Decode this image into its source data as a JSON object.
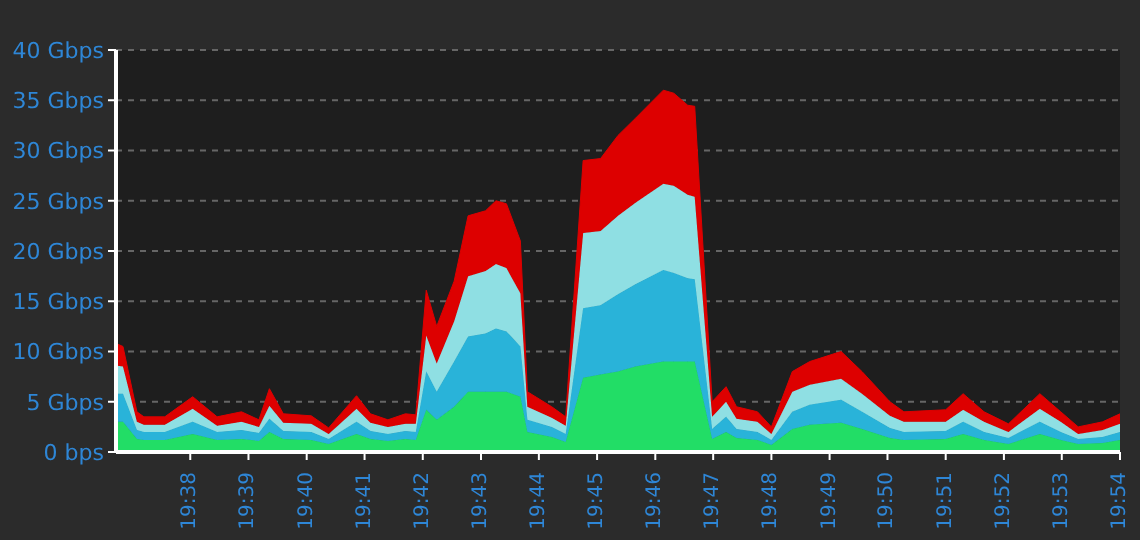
{
  "chart_data": {
    "type": "area",
    "stacked": true,
    "grid": "y",
    "x": [
      19.612,
      19.614,
      19.618,
      19.62,
      19.626,
      19.634,
      19.641,
      19.648,
      19.653,
      19.656,
      19.66,
      19.668,
      19.673,
      19.681,
      19.685,
      19.69,
      19.695,
      19.698,
      19.701,
      19.704,
      19.709,
      19.713,
      19.718,
      19.721,
      19.724,
      19.728,
      19.73,
      19.737,
      19.741,
      19.746,
      19.751,
      19.756,
      19.761,
      19.769,
      19.772,
      19.776,
      19.778,
      19.783,
      19.787,
      19.79,
      19.796,
      19.8,
      19.806,
      19.811,
      19.82,
      19.826,
      19.834,
      19.838,
      19.85,
      19.855,
      19.861,
      19.868,
      19.877,
      19.883,
      19.888,
      19.895,
      19.9
    ],
    "xlim": [
      19.612,
      19.9
    ],
    "xticks": [
      {
        "value": 19.6333,
        "label": "19:38"
      },
      {
        "value": 19.65,
        "label": "19:39"
      },
      {
        "value": 19.6667,
        "label": "19:40"
      },
      {
        "value": 19.6833,
        "label": "19:41"
      },
      {
        "value": 19.7,
        "label": "19:42"
      },
      {
        "value": 19.7167,
        "label": "19:43"
      },
      {
        "value": 19.7333,
        "label": "19:44"
      },
      {
        "value": 19.75,
        "label": "19:45"
      },
      {
        "value": 19.7667,
        "label": "19:46"
      },
      {
        "value": 19.7833,
        "label": "19:47"
      },
      {
        "value": 19.8,
        "label": "19:48"
      },
      {
        "value": 19.8167,
        "label": "19:49"
      },
      {
        "value": 19.8333,
        "label": "19:50"
      },
      {
        "value": 19.85,
        "label": "19:51"
      },
      {
        "value": 19.8667,
        "label": "19:52"
      },
      {
        "value": 19.8833,
        "label": "19:53"
      },
      {
        "value": 19.9,
        "label": "19:54"
      }
    ],
    "ylim": [
      0,
      40
    ],
    "yticks": [
      {
        "value": 0,
        "label": "0 bps"
      },
      {
        "value": 5,
        "label": "5 Gbps"
      },
      {
        "value": 10,
        "label": "10 Gbps"
      },
      {
        "value": 15,
        "label": "15 Gbps"
      },
      {
        "value": 20,
        "label": "20 Gbps"
      },
      {
        "value": 25,
        "label": "25 Gbps"
      },
      {
        "value": 30,
        "label": "30 Gbps"
      },
      {
        "value": 35,
        "label": "35 Gbps"
      },
      {
        "value": 40,
        "label": "40 Gbps"
      }
    ],
    "series": [
      {
        "color": "#22dd66",
        "values": [
          3,
          3,
          1.3,
          1.2,
          1.2,
          1.8,
          1.2,
          1.3,
          1.1,
          2,
          1.3,
          1.2,
          0.8,
          1.8,
          1.3,
          1.1,
          1.3,
          1.2,
          4.2,
          3.2,
          4.5,
          6,
          6,
          6,
          6,
          5.5,
          2,
          1.5,
          1,
          7.4,
          7.7,
          8,
          8.5,
          9,
          9,
          9,
          9,
          1.3,
          2,
          1.4,
          1.2,
          0.7,
          2.3,
          2.7,
          2.9,
          2.3,
          1.4,
          1.2,
          1.3,
          1.8,
          1.2,
          0.8,
          1.8,
          1.2,
          0.8,
          0.9,
          1.2
        ]
      },
      {
        "color": "#29b3d9",
        "values": [
          2.8,
          2.8,
          0.9,
          0.8,
          0.8,
          1.2,
          0.8,
          0.9,
          0.8,
          1.3,
          0.8,
          0.8,
          0.5,
          1.2,
          0.8,
          0.7,
          0.8,
          0.8,
          3.8,
          2.8,
          4.5,
          5.5,
          5.8,
          6.3,
          6,
          5,
          1.2,
          1,
          0.8,
          6.9,
          6.9,
          7.7,
          8.2,
          9.1,
          8.8,
          8.3,
          8.2,
          1,
          1.5,
          0.9,
          0.8,
          0.5,
          1.7,
          2,
          2.3,
          1.7,
          1,
          0.8,
          0.8,
          1.2,
          0.8,
          0.6,
          1.2,
          0.8,
          0.5,
          0.6,
          0.8
        ]
      },
      {
        "color": "#8fdfe3",
        "values": [
          2.8,
          2.7,
          0.8,
          0.7,
          0.7,
          1.3,
          0.6,
          0.8,
          0.6,
          1.3,
          0.8,
          0.8,
          0.5,
          1.3,
          0.8,
          0.7,
          0.7,
          0.8,
          3.6,
          2.8,
          4,
          6,
          6.2,
          6.4,
          6.3,
          5.3,
          1.3,
          0.9,
          0.8,
          7.5,
          7.4,
          7.8,
          8.1,
          8.6,
          8.7,
          8.3,
          8.2,
          1.2,
          1.5,
          1,
          1,
          0.6,
          2,
          2,
          2.1,
          1.8,
          1.2,
          1,
          0.9,
          1.2,
          1,
          0.6,
          1.3,
          1,
          0.5,
          0.7,
          0.8
        ]
      },
      {
        "color": "#dd0000",
        "values": [
          2.2,
          2,
          1,
          0.8,
          0.8,
          1.2,
          0.9,
          1,
          0.7,
          1.7,
          0.9,
          0.8,
          0.6,
          1.3,
          0.9,
          0.7,
          1,
          0.9,
          4.5,
          3.7,
          4,
          6,
          6,
          6.3,
          6.4,
          5.2,
          1.5,
          1.1,
          0.9,
          7.2,
          7.2,
          8,
          8.4,
          9.3,
          9.2,
          8.9,
          9,
          1.5,
          1.5,
          1.2,
          1,
          0.7,
          2,
          2.3,
          2.7,
          2.2,
          1.4,
          1,
          1.2,
          1.6,
          1,
          0.8,
          1.5,
          1,
          0.7,
          0.8,
          1
        ]
      }
    ]
  }
}
